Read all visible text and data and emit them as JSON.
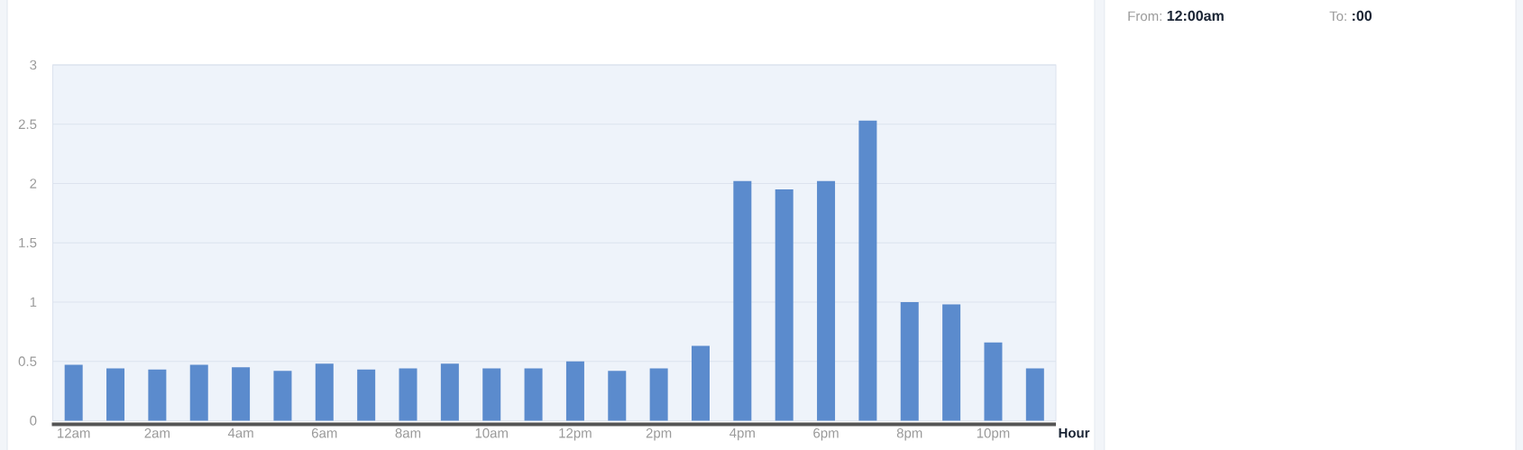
{
  "chart_data": {
    "type": "bar",
    "xlabel": "Hour",
    "categories": [
      "12am",
      null,
      "2am",
      null,
      "4am",
      null,
      "6am",
      null,
      "8am",
      null,
      "10am",
      null,
      "12pm",
      null,
      "2pm",
      null,
      "4pm",
      null,
      "6pm",
      null,
      "8pm",
      null,
      "10pm",
      null
    ],
    "values": [
      0.47,
      0.44,
      0.43,
      0.47,
      0.45,
      0.42,
      0.48,
      0.43,
      0.44,
      0.48,
      0.44,
      0.44,
      0.5,
      0.42,
      0.44,
      0.63,
      2.02,
      1.95,
      2.02,
      2.53,
      1.0,
      0.98,
      0.66,
      0.44
    ],
    "color": "#5b8bcd",
    "ylim": [
      0,
      3
    ],
    "yticks": [
      0,
      0.5,
      1,
      1.5,
      2,
      2.5,
      3
    ],
    "grid": "y",
    "annotations": [
      "From:",
      "12:00am",
      "To:",
      ":00"
    ]
  }
}
